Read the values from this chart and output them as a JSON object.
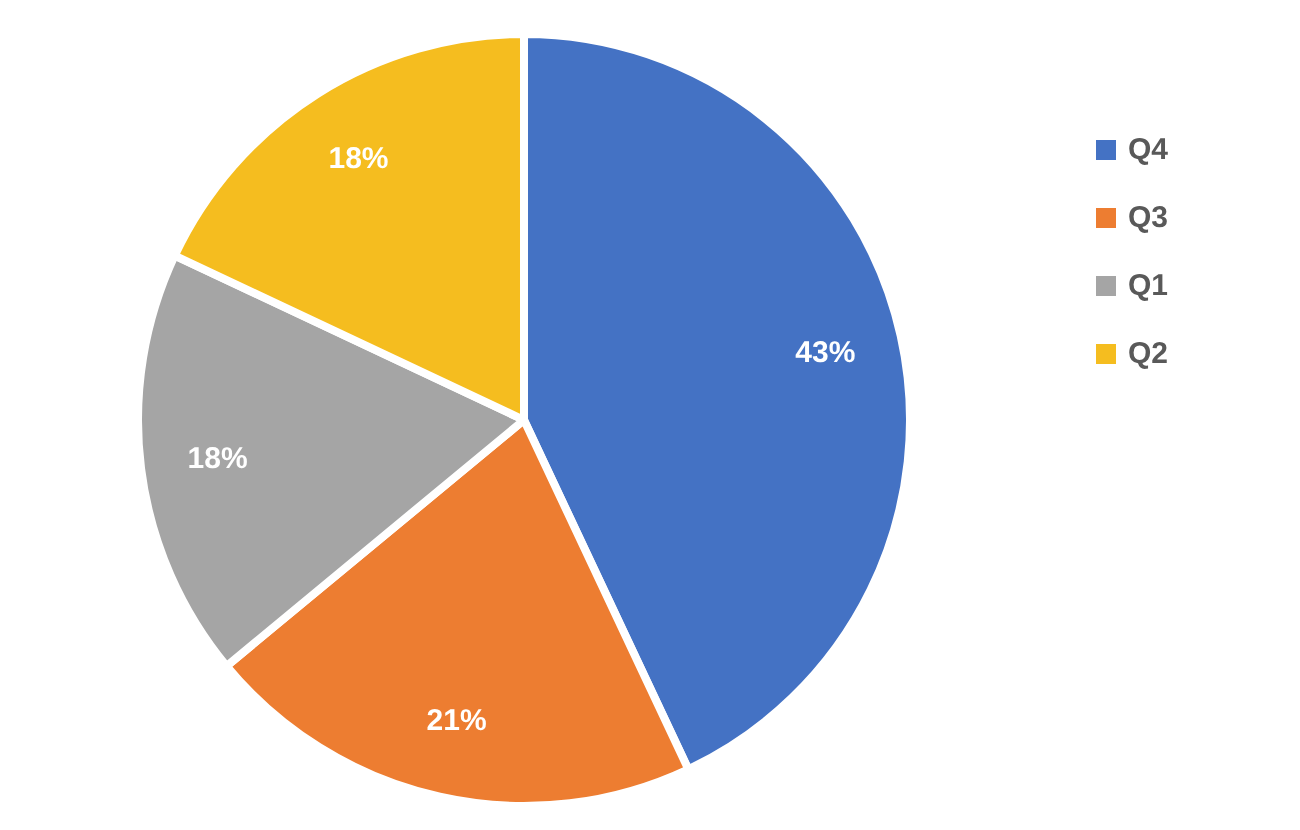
{
  "chart_data": {
    "type": "pie",
    "categories": [
      "Q4",
      "Q3",
      "Q1",
      "Q2"
    ],
    "values": [
      43,
      21,
      18,
      18
    ],
    "colors": [
      "#4472c4",
      "#ed7d31",
      "#a5a5a5",
      "#f5bd1f"
    ],
    "value_labels": [
      "43%",
      "21%",
      "18%",
      "18%"
    ],
    "legend": "right"
  }
}
